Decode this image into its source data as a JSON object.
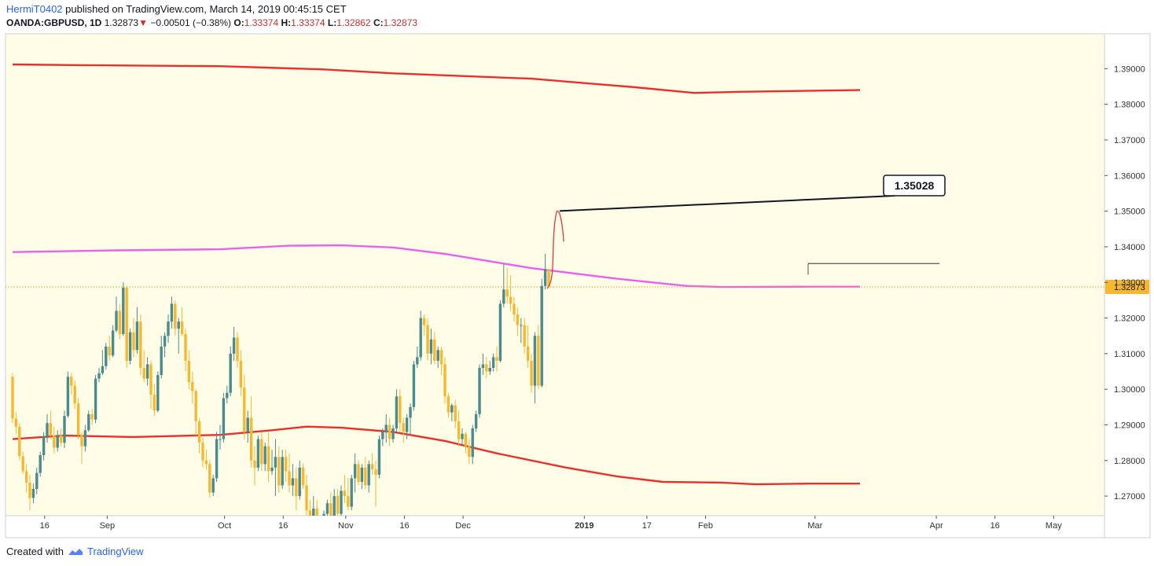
{
  "header": {
    "user": "HermiT0402",
    "published": "published on TradingView.com, March 14, 2019 00:45:15 CET",
    "symbol": "OANDA:GBPUSD, 1D",
    "last": "1.32873",
    "change": "−0.00501 (−0.38%)",
    "o_label": "O:",
    "o_value": "1.33374",
    "h_label": "H:",
    "h_value": "1.33374",
    "l_label": "L:",
    "l_value": "1.32862",
    "c_label": "C:",
    "c_value": "1.32873"
  },
  "footer": {
    "created_with": "Created with",
    "brand": "TradingView"
  },
  "colors": {
    "background": "#fffde7",
    "up": "#4a8b8b",
    "down": "#f5b82e",
    "ma_red": "#e8312a",
    "ma_magenta": "#e962e9",
    "price_line": "#d4af1f",
    "arrow": "#e53935"
  },
  "chart_data": {
    "type": "candlestick",
    "y_axis": {
      "min": 1.2645,
      "max": 1.3998,
      "ticks": [
        "1.39000",
        "1.38000",
        "1.37000",
        "1.36000",
        "1.35000",
        "1.34000",
        "1.33000",
        "1.32000",
        "1.31000",
        "1.30000",
        "1.29000",
        "1.28000",
        "1.27000"
      ],
      "tick_values": [
        1.39,
        1.38,
        1.37,
        1.36,
        1.35,
        1.34,
        1.33,
        1.32,
        1.31,
        1.3,
        1.29,
        1.28,
        1.27
      ],
      "last_price_label": "1.32873",
      "last_price": 1.32873
    },
    "x_axis": {
      "labels": [
        "16",
        "Sep",
        "Oct",
        "16",
        "Nov",
        "16",
        "Dec",
        "2019",
        "17",
        "Feb",
        "Mar",
        "Apr",
        "16",
        "May"
      ],
      "label_dates": [
        "2018-08-16",
        "2018-09-01",
        "2018-10-01",
        "2018-10-16",
        "2018-11-01",
        "2018-11-16",
        "2018-12-01",
        "2019-01-01",
        "2019-01-17",
        "2019-02-01",
        "2019-03-01",
        "2019-04-01",
        "2019-04-16",
        "2019-05-01"
      ],
      "start_date": "2018-08-06",
      "end_date": "2019-05-14"
    },
    "candles": [
      [
        1.3035,
        1.3045,
        1.2905,
        1.2918
      ],
      [
        1.2918,
        1.2935,
        1.2875,
        1.2895
      ],
      [
        1.2895,
        1.2905,
        1.28,
        1.2812
      ],
      [
        1.2812,
        1.2825,
        1.2762,
        1.277
      ],
      [
        1.277,
        1.279,
        1.271,
        1.2738
      ],
      [
        1.2738,
        1.276,
        1.266,
        1.2695
      ],
      [
        1.2695,
        1.2735,
        1.268,
        1.272
      ],
      [
        1.272,
        1.278,
        1.2705,
        1.2765
      ],
      [
        1.2765,
        1.2825,
        1.2755,
        1.2815
      ],
      [
        1.2815,
        1.288,
        1.28,
        1.2868
      ],
      [
        1.2868,
        1.293,
        1.285,
        1.2905
      ],
      [
        1.2905,
        1.294,
        1.286,
        1.287
      ],
      [
        1.287,
        1.2895,
        1.282,
        1.2836
      ],
      [
        1.2836,
        1.2885,
        1.2825,
        1.287
      ],
      [
        1.287,
        1.289,
        1.284,
        1.285
      ],
      [
        1.285,
        1.294,
        1.2835,
        1.2925
      ],
      [
        1.2925,
        1.305,
        1.292,
        1.3035
      ],
      [
        1.3035,
        1.3045,
        1.2985,
        1.301
      ],
      [
        1.301,
        1.3025,
        1.2945,
        1.296
      ],
      [
        1.296,
        1.2975,
        1.286,
        1.2872
      ],
      [
        1.2872,
        1.288,
        1.279,
        1.284
      ],
      [
        1.284,
        1.29,
        1.2825,
        1.2885
      ],
      [
        1.2885,
        1.294,
        1.288,
        1.293
      ],
      [
        1.293,
        1.2945,
        1.29,
        1.2915
      ],
      [
        1.2915,
        1.304,
        1.2905,
        1.303
      ],
      [
        1.303,
        1.306,
        1.302,
        1.3045
      ],
      [
        1.3045,
        1.311,
        1.304,
        1.3065
      ],
      [
        1.3065,
        1.313,
        1.3055,
        1.312
      ],
      [
        1.312,
        1.315,
        1.308,
        1.3095
      ],
      [
        1.3095,
        1.318,
        1.309,
        1.3165
      ],
      [
        1.3165,
        1.326,
        1.316,
        1.322
      ],
      [
        1.322,
        1.324,
        1.314,
        1.3155
      ],
      [
        1.3155,
        1.33,
        1.315,
        1.3285
      ],
      [
        1.3285,
        1.329,
        1.306,
        1.308
      ],
      [
        1.308,
        1.317,
        1.307,
        1.316
      ],
      [
        1.316,
        1.32,
        1.309,
        1.311
      ],
      [
        1.311,
        1.323,
        1.31,
        1.319
      ],
      [
        1.319,
        1.321,
        1.304,
        1.306
      ],
      [
        1.306,
        1.311,
        1.302,
        1.303
      ],
      [
        1.303,
        1.309,
        1.301,
        1.307
      ],
      [
        1.307,
        1.308,
        1.2945,
        1.2985
      ],
      [
        1.2985,
        1.3015,
        1.2925,
        1.294
      ],
      [
        1.294,
        1.305,
        1.2935,
        1.304
      ],
      [
        1.304,
        1.315,
        1.303,
        1.312
      ],
      [
        1.312,
        1.316,
        1.309,
        1.315
      ],
      [
        1.315,
        1.321,
        1.313,
        1.319
      ],
      [
        1.319,
        1.326,
        1.317,
        1.324
      ],
      [
        1.324,
        1.325,
        1.315,
        1.317
      ],
      [
        1.317,
        1.32,
        1.31,
        1.319
      ],
      [
        1.319,
        1.323,
        1.315,
        1.3155
      ],
      [
        1.3155,
        1.317,
        1.305,
        1.308
      ],
      [
        1.308,
        1.311,
        1.3,
        1.302
      ],
      [
        1.302,
        1.305,
        1.296,
        1.2995
      ],
      [
        1.2995,
        1.3,
        1.287,
        1.291
      ],
      [
        1.291,
        1.292,
        1.282,
        1.285
      ],
      [
        1.285,
        1.2865,
        1.278,
        1.28
      ],
      [
        1.28,
        1.283,
        1.2775,
        1.279
      ],
      [
        1.279,
        1.28,
        1.2695,
        1.271
      ],
      [
        1.271,
        1.276,
        1.27,
        1.275
      ],
      [
        1.275,
        1.288,
        1.274,
        1.286
      ],
      [
        1.286,
        1.29,
        1.283,
        1.286
      ],
      [
        1.286,
        1.299,
        1.285,
        1.2975
      ],
      [
        1.2975,
        1.301,
        1.296,
        1.299
      ],
      [
        1.299,
        1.312,
        1.298,
        1.31
      ],
      [
        1.31,
        1.3175,
        1.308,
        1.3145
      ],
      [
        1.3145,
        1.316,
        1.306,
        1.308
      ],
      [
        1.308,
        1.311,
        1.298,
        1.3005
      ],
      [
        1.3005,
        1.304,
        1.286,
        1.288
      ],
      [
        1.288,
        1.294,
        1.285,
        1.292
      ],
      [
        1.292,
        1.298,
        1.278,
        1.28
      ],
      [
        1.28,
        1.284,
        1.273,
        1.278
      ],
      [
        1.278,
        1.287,
        1.277,
        1.286
      ],
      [
        1.286,
        1.288,
        1.277,
        1.279
      ],
      [
        1.279,
        1.285,
        1.277,
        1.284
      ],
      [
        1.284,
        1.288,
        1.274,
        1.277
      ],
      [
        1.277,
        1.283,
        1.276,
        1.278
      ],
      [
        1.278,
        1.286,
        1.27,
        1.281
      ],
      [
        1.281,
        1.284,
        1.271,
        1.273
      ],
      [
        1.273,
        1.283,
        1.272,
        1.281
      ],
      [
        1.281,
        1.283,
        1.274,
        1.277
      ],
      [
        1.277,
        1.282,
        1.271,
        1.273
      ],
      [
        1.273,
        1.279,
        1.27,
        1.275
      ],
      [
        1.275,
        1.278,
        1.266,
        1.27
      ],
      [
        1.27,
        1.28,
        1.269,
        1.278
      ],
      [
        1.278,
        1.279,
        1.272,
        1.273
      ],
      [
        1.273,
        1.276,
        1.264,
        1.266
      ],
      [
        1.266,
        1.269,
        1.262,
        1.264
      ],
      [
        1.264,
        1.27,
        1.263,
        1.2665
      ],
      [
        1.2665,
        1.269,
        1.256,
        1.258
      ],
      [
        1.258,
        1.26,
        1.255,
        1.257
      ],
      [
        1.257,
        1.266,
        1.256,
        1.265
      ],
      [
        1.265,
        1.269,
        1.264,
        1.268
      ],
      [
        1.268,
        1.271,
        1.262,
        1.264
      ],
      [
        1.264,
        1.272,
        1.262,
        1.27
      ],
      [
        1.27,
        1.272,
        1.262,
        1.265
      ],
      [
        1.265,
        1.273,
        1.264,
        1.2715
      ],
      [
        1.2715,
        1.276,
        1.268,
        1.27
      ],
      [
        1.27,
        1.275,
        1.266,
        1.267
      ],
      [
        1.267,
        1.276,
        1.266,
        1.275
      ],
      [
        1.275,
        1.282,
        1.271,
        1.279
      ],
      [
        1.279,
        1.28,
        1.273,
        1.274
      ],
      [
        1.274,
        1.279,
        1.272,
        1.278
      ],
      [
        1.278,
        1.281,
        1.272,
        1.273
      ],
      [
        1.273,
        1.28,
        1.271,
        1.279
      ],
      [
        1.279,
        1.282,
        1.276,
        1.2775
      ],
      [
        1.2775,
        1.28,
        1.267,
        1.276
      ],
      [
        1.276,
        1.287,
        1.275,
        1.286
      ],
      [
        1.286,
        1.289,
        1.284,
        1.288
      ],
      [
        1.288,
        1.293,
        1.285,
        1.29
      ],
      [
        1.29,
        1.292,
        1.284,
        1.286
      ],
      [
        1.286,
        1.29,
        1.285,
        1.289
      ],
      [
        1.289,
        1.3,
        1.288,
        1.298
      ],
      [
        1.298,
        1.3,
        1.288,
        1.2905
      ],
      [
        1.2905,
        1.292,
        1.285,
        1.288
      ],
      [
        1.288,
        1.293,
        1.286,
        1.292
      ],
      [
        1.292,
        1.296,
        1.287,
        1.295
      ],
      [
        1.295,
        1.308,
        1.294,
        1.307
      ],
      [
        1.307,
        1.312,
        1.306,
        1.309
      ],
      [
        1.309,
        1.322,
        1.308,
        1.32
      ],
      [
        1.32,
        1.321,
        1.315,
        1.318
      ],
      [
        1.318,
        1.32,
        1.308,
        1.31
      ],
      [
        1.31,
        1.317,
        1.307,
        1.314
      ],
      [
        1.314,
        1.316,
        1.307,
        1.308
      ],
      [
        1.308,
        1.312,
        1.306,
        1.311
      ],
      [
        1.311,
        1.312,
        1.304,
        1.307
      ],
      [
        1.307,
        1.309,
        1.296,
        1.298
      ],
      [
        1.298,
        1.299,
        1.292,
        1.2935
      ],
      [
        1.2935,
        1.296,
        1.291,
        1.2955
      ],
      [
        1.2955,
        1.297,
        1.289,
        1.291
      ],
      [
        1.291,
        1.294,
        1.284,
        1.286
      ],
      [
        1.286,
        1.289,
        1.284,
        1.2875
      ],
      [
        1.2875,
        1.288,
        1.282,
        1.284
      ],
      [
        1.284,
        1.286,
        1.279,
        1.281
      ],
      [
        1.281,
        1.29,
        1.279,
        1.289
      ],
      [
        1.289,
        1.294,
        1.288,
        1.293
      ],
      [
        1.293,
        1.307,
        1.292,
        1.306
      ],
      [
        1.306,
        1.31,
        1.304,
        1.307
      ],
      [
        1.307,
        1.309,
        1.303,
        1.305
      ],
      [
        1.305,
        1.308,
        1.304,
        1.306
      ],
      [
        1.306,
        1.31,
        1.305,
        1.309
      ],
      [
        1.309,
        1.312,
        1.305,
        1.308
      ],
      [
        1.308,
        1.325,
        1.3075,
        1.324
      ],
      [
        1.324,
        1.335,
        1.323,
        1.328
      ],
      [
        1.328,
        1.334,
        1.324,
        1.326
      ],
      [
        1.326,
        1.332,
        1.322,
        1.324
      ],
      [
        1.324,
        1.326,
        1.319,
        1.321
      ],
      [
        1.321,
        1.323,
        1.315,
        1.318
      ],
      [
        1.318,
        1.32,
        1.313,
        1.318
      ],
      [
        1.318,
        1.32,
        1.31,
        1.312
      ],
      [
        1.312,
        1.318,
        1.306,
        1.308
      ],
      [
        1.308,
        1.31,
        1.299,
        1.301
      ],
      [
        1.301,
        1.316,
        1.296,
        1.315
      ],
      [
        1.315,
        1.318,
        1.3,
        1.301
      ],
      [
        1.301,
        1.331,
        1.3005,
        1.329
      ],
      [
        1.329,
        1.338,
        1.328,
        1.3337
      ],
      [
        1.33374,
        1.33374,
        1.32862,
        1.32873
      ]
    ],
    "sma_red_upper": [
      [
        0,
        1.3912
      ],
      [
        20,
        1.391
      ],
      [
        60,
        1.3907
      ],
      [
        90,
        1.3898
      ],
      [
        110,
        1.3887
      ],
      [
        150,
        1.3872
      ],
      [
        180,
        1.3848
      ],
      [
        197,
        1.3832
      ],
      [
        210,
        1.3835
      ],
      [
        245,
        1.384
      ]
    ],
    "sma_red_lower": [
      [
        0,
        1.286
      ],
      [
        15,
        1.287
      ],
      [
        35,
        1.2866
      ],
      [
        60,
        1.2872
      ],
      [
        75,
        1.2885
      ],
      [
        85,
        1.2895
      ],
      [
        95,
        1.2892
      ],
      [
        110,
        1.288
      ],
      [
        125,
        1.2855
      ],
      [
        140,
        1.282
      ],
      [
        160,
        1.278
      ],
      [
        175,
        1.2755
      ],
      [
        188,
        1.274
      ],
      [
        205,
        1.2738
      ],
      [
        215,
        1.2733
      ],
      [
        230,
        1.2735
      ],
      [
        245,
        1.2735
      ]
    ],
    "sma_magenta": [
      [
        0,
        1.3385
      ],
      [
        30,
        1.339
      ],
      [
        60,
        1.3393
      ],
      [
        80,
        1.3403
      ],
      [
        95,
        1.3404
      ],
      [
        110,
        1.3398
      ],
      [
        125,
        1.338
      ],
      [
        150,
        1.334
      ],
      [
        175,
        1.331
      ],
      [
        195,
        1.329
      ],
      [
        205,
        1.3287
      ],
      [
        230,
        1.3288
      ],
      [
        245,
        1.3288
      ]
    ],
    "horizontal_line": {
      "start_index": 230,
      "end_index": 268,
      "value": 1.3353
    },
    "callout_label": "1.35028",
    "callout_value": 1.35028
  }
}
